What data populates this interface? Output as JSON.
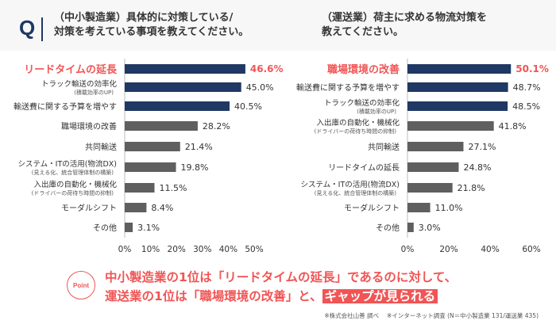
{
  "header": {
    "q": "Q",
    "left_question": [
      "（中小製造業）具体的に対策している/",
      "対策を考えている事項を教えてください。"
    ],
    "right_question": [
      "（運送業）荷主に求める物流対策を",
      "教えてください。"
    ]
  },
  "chart_data": [
    {
      "type": "bar",
      "orientation": "horizontal",
      "title": "（中小製造業）具体的に対策している/対策を考えている事項",
      "xlim": [
        0,
        50
      ],
      "xticks": [
        "0%",
        "10%",
        "20%",
        "30%",
        "40%",
        "50%"
      ],
      "categories": [
        [
          "リードタイムの延長",
          ""
        ],
        [
          "トラック輸送の効率化",
          "(積載効率のUP)"
        ],
        [
          "輸送費に関する予算を増やす",
          ""
        ],
        [
          "職場環境の改善",
          ""
        ],
        [
          "共同輸送",
          ""
        ],
        [
          "システム・ITの活用(物流DX)",
          "(見える化、統合管理体制の構築)"
        ],
        [
          "入出庫の自動化・機械化",
          "(ドライバーの荷待ち時間の抑制)"
        ],
        [
          "モーダルシフト",
          ""
        ],
        [
          "その他",
          ""
        ]
      ],
      "values": [
        46.6,
        45.0,
        40.5,
        28.2,
        21.4,
        19.8,
        11.5,
        8.4,
        3.1
      ],
      "labels": [
        "46.6%",
        "45.0%",
        "40.5%",
        "28.2%",
        "21.4%",
        "19.8%",
        "11.5%",
        "8.4%",
        "3.1%"
      ],
      "highlight_count": 3
    },
    {
      "type": "bar",
      "orientation": "horizontal",
      "title": "（運送業）荷主に求める物流対策",
      "xlim": [
        0,
        60
      ],
      "xticks": [
        "0%",
        "20%",
        "40%",
        "60%"
      ],
      "categories": [
        [
          "職場環境の改善",
          ""
        ],
        [
          "輸送費に関する予算を増やす",
          ""
        ],
        [
          "トラック輸送の効率化",
          "(積載効率のUP)"
        ],
        [
          "入出庫の自動化・機械化",
          "(ドライバーの荷待ち時間の抑制)"
        ],
        [
          "共同輸送",
          ""
        ],
        [
          "リードタイムの延長",
          ""
        ],
        [
          "システム・ITの活用(物流DX)",
          "(見える化、統合管理体制の構築)"
        ],
        [
          "モーダルシフト",
          ""
        ],
        [
          "その他",
          ""
        ]
      ],
      "values": [
        50.1,
        48.7,
        48.5,
        41.8,
        27.1,
        24.8,
        21.8,
        11.0,
        3.0
      ],
      "labels": [
        "50.1%",
        "48.7%",
        "48.5%",
        "41.8%",
        "27.1%",
        "24.8%",
        "21.8%",
        "11.0%",
        "3.0%"
      ],
      "highlight_count": 3
    }
  ],
  "colors": {
    "navy": "#1f3864",
    "grey": "#5f5f5f",
    "red": "#f05555"
  },
  "point": {
    "badge": "Point",
    "line1": "中小製造業の1位は「リードタイムの延長」であるのに対して、",
    "line2_pre": "運送業の1位は「職場環境の改善」と、",
    "line2_hl": "ギャップが見られる"
  },
  "note": "※株式会社山善 調べ　 ※インターネット調査 (N＝中小製造業 131/運送業 435)"
}
